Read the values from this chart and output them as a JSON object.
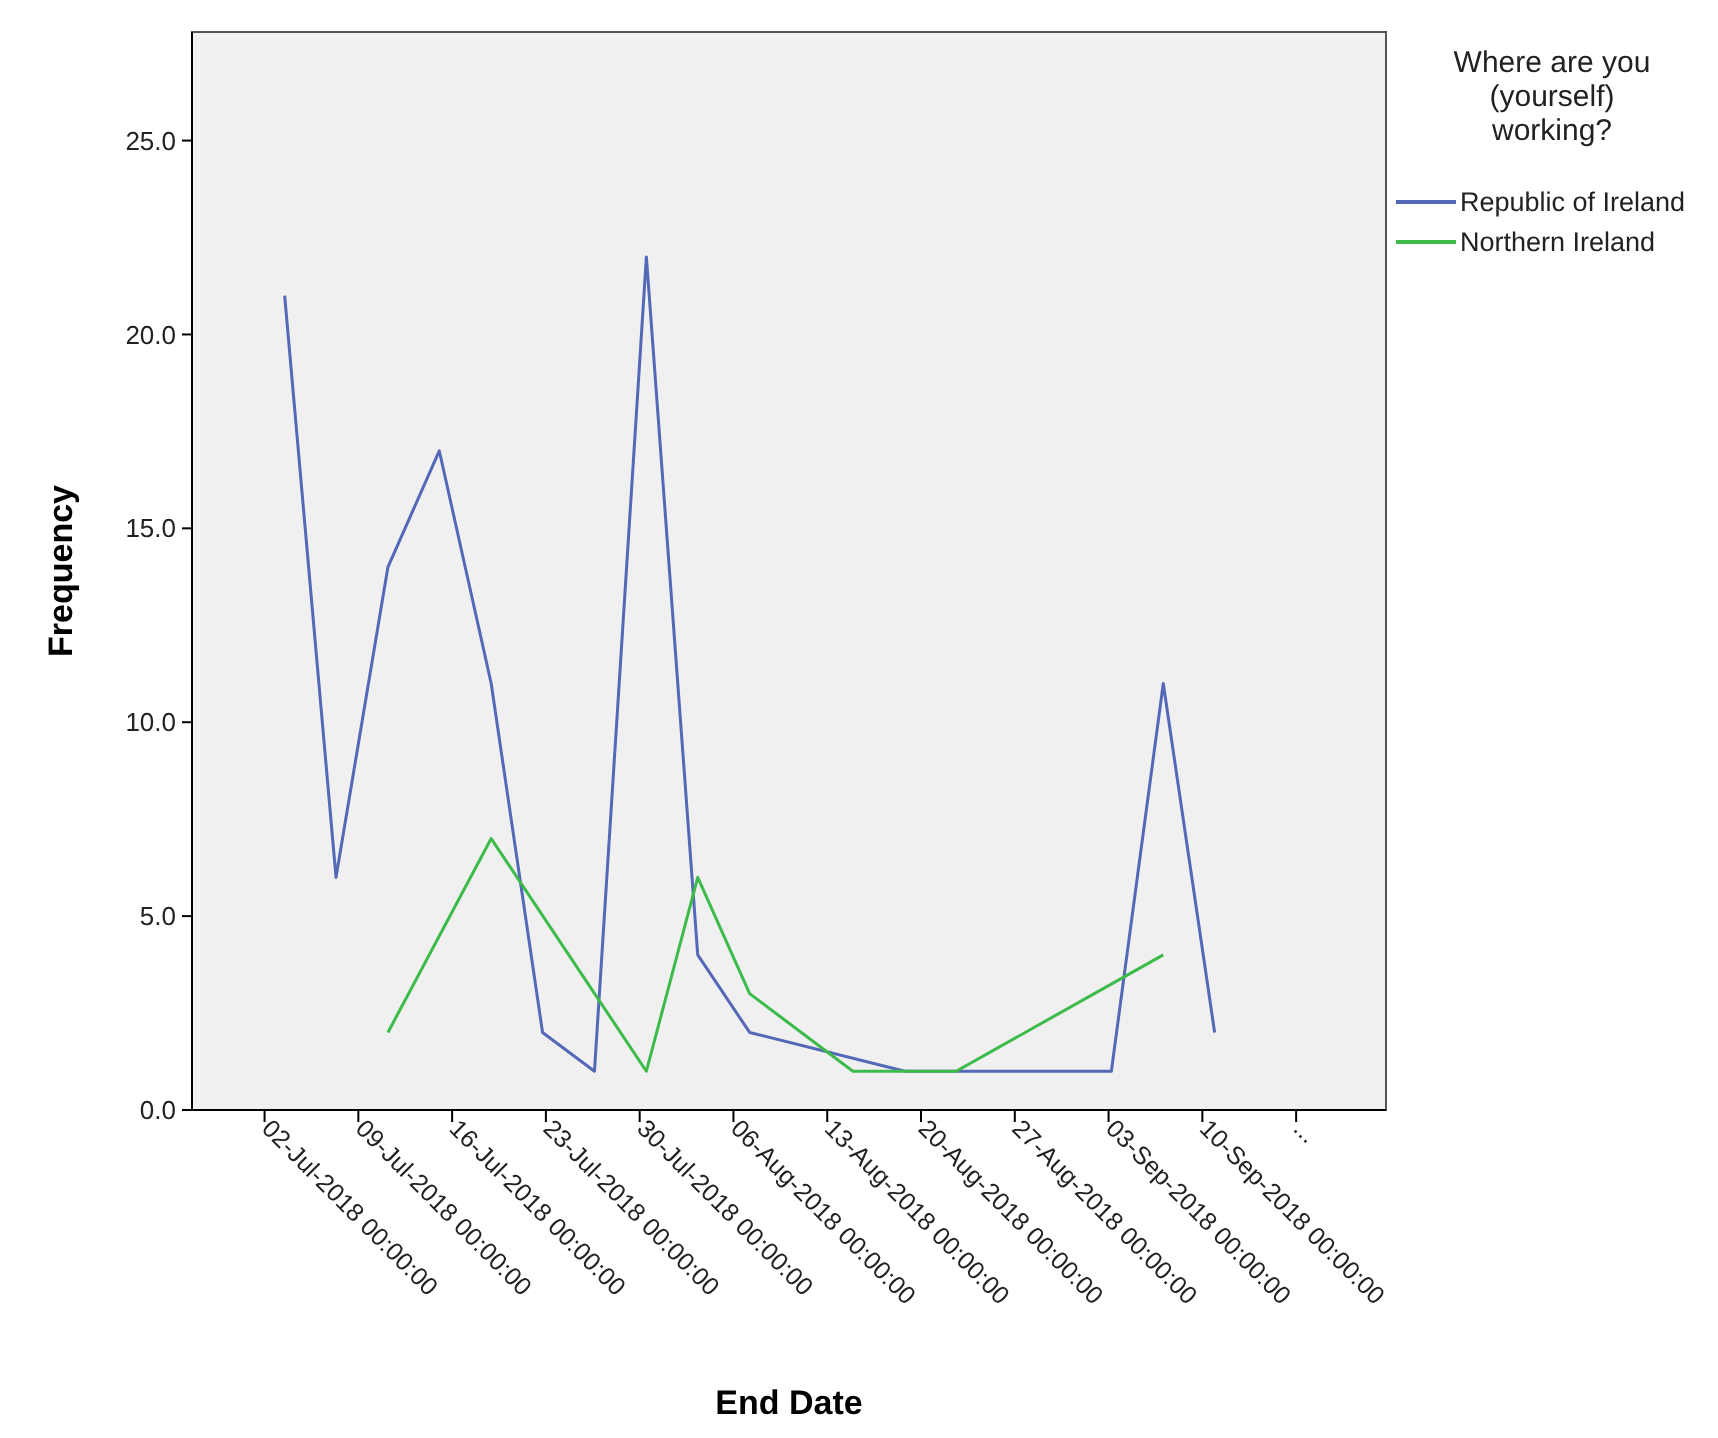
{
  "chart_data": {
    "type": "line",
    "xlabel": "End Date",
    "ylabel": "Frequency",
    "legend_title": "Where are you (yourself) working?",
    "legend": "top right",
    "grid": false,
    "marker": "none",
    "line_style": "solid",
    "xlim": [
      "2018-06-26T14:00",
      "2018-09-23T17:00"
    ],
    "xticks": [
      {
        "value": "2018-07-02",
        "label": "02-Jul-2018 00:00:00"
      },
      {
        "value": "2018-07-09",
        "label": "09-Jul-2018 00:00:00"
      },
      {
        "value": "2018-07-16",
        "label": "16-Jul-2018 00:00:00"
      },
      {
        "value": "2018-07-23",
        "label": "23-Jul-2018 00:00:00"
      },
      {
        "value": "2018-07-30",
        "label": "30-Jul-2018 00:00:00"
      },
      {
        "value": "2018-08-06",
        "label": "06-Aug-2018 00:00:00"
      },
      {
        "value": "2018-08-13",
        "label": "13-Aug-2018 00:00:00"
      },
      {
        "value": "2018-08-20",
        "label": "20-Aug-2018 00:00:00"
      },
      {
        "value": "2018-08-27",
        "label": "27-Aug-2018 00:00:00"
      },
      {
        "value": "2018-09-03",
        "label": "03-Sep-2018 00:00:00"
      },
      {
        "value": "2018-09-10",
        "label": "10-Sep-2018 00:00:00"
      },
      {
        "value": "2018-09-17",
        "label": "..."
      }
    ],
    "ylim": [
      0,
      27.8
    ],
    "yticks": [
      {
        "value": 0,
        "label": "0.0"
      },
      {
        "value": 5,
        "label": "5.0"
      },
      {
        "value": 10,
        "label": "10.0"
      },
      {
        "value": 15,
        "label": "15.0"
      },
      {
        "value": 20,
        "label": "20.0"
      },
      {
        "value": 25,
        "label": "25.0"
      }
    ],
    "series": [
      {
        "name": "Republic of Ireland",
        "color": "#5468b8",
        "x": [
          "2018-07-03T12:00",
          "2018-07-07T08:00",
          "2018-07-11T05:00",
          "2018-07-15T01:00",
          "2018-07-18T22:00",
          "2018-07-22T18:00",
          "2018-07-26T15:00",
          "2018-07-30T12:00",
          "2018-08-03T08:00",
          "2018-08-07T05:00",
          "2018-08-18T19:00",
          "2018-09-03T05:00",
          "2018-09-07T02:00",
          "2018-09-10T22:00"
        ],
        "values": [
          21,
          6,
          14,
          17,
          11,
          2,
          1,
          22,
          4,
          2,
          1,
          1,
          11,
          2
        ]
      },
      {
        "name": "Northern Ireland",
        "color": "#3dbb4a",
        "x": [
          "2018-07-11T05:00",
          "2018-07-18T22:00",
          "2018-07-30T12:00",
          "2018-08-03T08:00",
          "2018-08-07T05:00",
          "2018-08-14T22:00",
          "2018-08-22T15:00",
          "2018-09-07T02:00"
        ],
        "values": [
          2,
          7,
          1,
          6,
          3,
          1,
          1,
          4
        ]
      }
    ]
  }
}
